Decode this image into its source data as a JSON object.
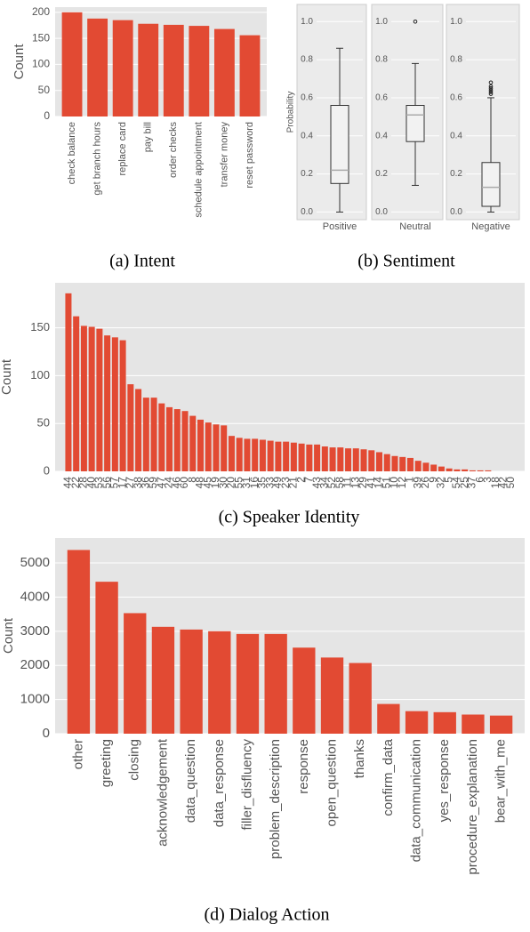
{
  "chart_data": [
    {
      "type": "bar",
      "caption": "(a) Intent",
      "ylabel": "Count",
      "categories": [
        "check balance",
        "get branch hours",
        "replace card",
        "pay bill",
        "order checks",
        "schedule appointment",
        "transfer money",
        "reset password"
      ],
      "values": [
        200,
        188,
        185,
        178,
        176,
        174,
        168,
        156
      ],
      "color": "#e24a33",
      "ylim": [
        0,
        210
      ],
      "yticks": [
        0,
        50,
        100,
        150,
        200
      ],
      "grid": true
    },
    {
      "type": "box",
      "caption": "(b) Sentiment",
      "ylabel": "Probability",
      "categories": [
        "Positive",
        "Neutral",
        "Negative"
      ],
      "boxes": [
        {
          "min": 0.0,
          "q1": 0.15,
          "median": 0.22,
          "q3": 0.56,
          "max": 0.86,
          "outliers": []
        },
        {
          "min": 0.14,
          "q1": 0.37,
          "median": 0.51,
          "q3": 0.56,
          "max": 0.78,
          "outliers": [
            1.0
          ]
        },
        {
          "min": 0.0,
          "q1": 0.03,
          "median": 0.13,
          "q3": 0.26,
          "max": 0.6,
          "outliers": [
            0.62,
            0.63,
            0.64,
            0.65,
            0.66,
            0.68
          ]
        }
      ],
      "ylim": [
        -0.04,
        1.09
      ],
      "yticks": [
        {
          "value": 0,
          "label": "0.0"
        },
        0.2,
        0.4,
        0.6,
        0.8,
        {
          "value": 1,
          "label": "1.0"
        }
      ],
      "grid": true
    },
    {
      "type": "bar",
      "caption": "(c) Speaker Identity",
      "ylabel": "Count",
      "categories": [
        "44",
        "22",
        "28",
        "40",
        "53",
        "56",
        "57",
        "17",
        "27",
        "38",
        "36",
        "59",
        "47",
        "24",
        "46",
        "60",
        "8",
        "48",
        "45",
        "19",
        "30",
        "20",
        "55",
        "31",
        "16",
        "35",
        "33",
        "49",
        "23",
        "21",
        "2",
        "7",
        "43",
        "34",
        "52",
        "58",
        "11",
        "13",
        "29",
        "41",
        "14",
        "51",
        "10",
        "12",
        "1",
        "39",
        "26",
        "9",
        "32",
        "5",
        "54",
        "25",
        "37",
        "6",
        "3",
        "18",
        "42",
        "50"
      ],
      "values": [
        186,
        162,
        152,
        151,
        149,
        142,
        140,
        137,
        91,
        86,
        77,
        77,
        71,
        67,
        65,
        63,
        58,
        54,
        51,
        49,
        48,
        37,
        35,
        34,
        34,
        33,
        32,
        31,
        31,
        30,
        29,
        28,
        28,
        26,
        25,
        25,
        24,
        24,
        23,
        22,
        20,
        18,
        16,
        15,
        14,
        11,
        9,
        7,
        5,
        3,
        2,
        2,
        1,
        1,
        1,
        0,
        0,
        0
      ],
      "color": "#e24a33",
      "ylim": [
        0,
        197
      ],
      "yticks": [
        0,
        50,
        100,
        150
      ],
      "grid": true
    },
    {
      "type": "bar",
      "caption": "(d) Dialog Action",
      "ylabel": "Count",
      "categories": [
        "other",
        "greeting",
        "closing",
        "acknowledgement",
        "data_question",
        "data_response",
        "filler_disfluency",
        "problem_description",
        "response",
        "open_question",
        "thanks",
        "confirm_data",
        "data_communication",
        "yes_response",
        "procedure_explanation",
        "bear_with_me"
      ],
      "values": [
        5380,
        4450,
        3530,
        3130,
        3050,
        3000,
        2920,
        2920,
        2520,
        2230,
        2070,
        870,
        660,
        630,
        560,
        530
      ],
      "color": "#e24a33",
      "ylim": [
        0,
        5730
      ],
      "yticks": [
        0,
        1000,
        2000,
        3000,
        4000,
        5000
      ],
      "grid": true
    }
  ]
}
